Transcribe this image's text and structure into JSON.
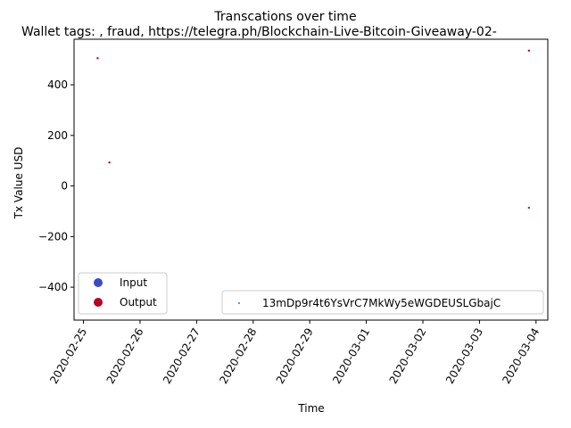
{
  "chart_data": {
    "type": "scatter",
    "title": "Transcations over time",
    "subtitle": "Wallet tags: , fraud, https://telegra.ph/Blockchain-Live-Bitcoin-Giveaway-02-",
    "xlabel": "Time",
    "ylabel": "Tx Value USD",
    "xlim": [
      "2020-02-24 20:00",
      "2020-03-04 05:00"
    ],
    "ylim": [
      -530,
      580
    ],
    "x_ticks": [
      "2020-02-25",
      "2020-02-26",
      "2020-02-27",
      "2020-02-28",
      "2020-02-29",
      "2020-03-01",
      "2020-03-02",
      "2020-03-03",
      "2020-03-04"
    ],
    "y_ticks": [
      400,
      200,
      0,
      -200,
      -400
    ],
    "y_tick_labels": [
      "400",
      "200",
      "0",
      "−200",
      "−400"
    ],
    "grid": false,
    "legend_type": {
      "placement": "lower-left",
      "entries": [
        {
          "label": "Input",
          "color": "#3b4cc0"
        },
        {
          "label": "Output",
          "color": "#b40426"
        }
      ]
    },
    "legend_wallet": {
      "placement": "lower-right",
      "label": "13mDp9r4t6YsVrC7MkWy5eWGDEUSLGbajC",
      "color": "#1f8f8f"
    },
    "series": [
      {
        "name": "Output",
        "color": "#b40426",
        "points": [
          {
            "x": "2020-02-25 06:00",
            "y": 505
          },
          {
            "x": "2020-02-25 11:00",
            "y": 93
          },
          {
            "x": "2020-03-03 21:00",
            "y": 535
          }
        ]
      },
      {
        "name": "Input",
        "color": "#3b4cc0",
        "points": [
          {
            "x": "2020-03-03 21:00",
            "y": -86
          }
        ]
      }
    ]
  }
}
